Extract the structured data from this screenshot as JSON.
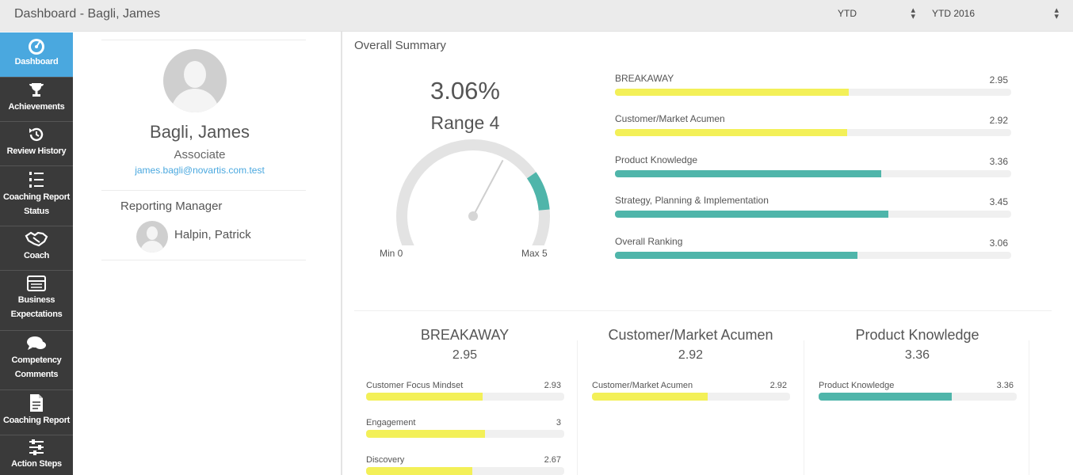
{
  "header": {
    "title": "Dashboard - Bagli, James",
    "period_select": "YTD",
    "year_select": "YTD 2016"
  },
  "sidebar": {
    "items": [
      {
        "label": "Dashboard",
        "icon": "dashboard-gauge-icon",
        "active": true
      },
      {
        "label": "Achievements",
        "icon": "trophy-icon"
      },
      {
        "label": "Review History",
        "icon": "history-icon"
      },
      {
        "label": "Coaching Report Status",
        "icon": "list-icon"
      },
      {
        "label": "Coach",
        "icon": "handshake-icon"
      },
      {
        "label": "Business Expectations",
        "icon": "table-icon"
      },
      {
        "label": "Competency Comments",
        "icon": "comments-icon"
      },
      {
        "label": "Coaching Report",
        "icon": "document-icon"
      },
      {
        "label": "Action Steps",
        "icon": "sliders-icon"
      }
    ]
  },
  "profile": {
    "name": "Bagli, James",
    "role": "Associate",
    "email": "james.bagli@novartis.com.test",
    "reporting_manager_label": "Reporting Manager",
    "manager_name": "Halpin, Patrick"
  },
  "summary": {
    "title": "Overall Summary",
    "percent": "3.06%",
    "range": "Range 4",
    "gauge_min": "Min 0",
    "gauge_max": "Max 5",
    "gauge_value": 3.06,
    "gauge_band": [
      3.6,
      4.2
    ],
    "metrics": [
      {
        "label": "BREAKAWAY",
        "value": "2.95",
        "fraction": 0.59,
        "color": "#f3f058"
      },
      {
        "label": "Customer/Market Acumen",
        "value": "2.92",
        "fraction": 0.585,
        "color": "#f3f058"
      },
      {
        "label": "Product Knowledge",
        "value": "3.36",
        "fraction": 0.672,
        "color": "#4fb5aa"
      },
      {
        "label": "Strategy, Planning & Implementation",
        "value": "3.45",
        "fraction": 0.69,
        "color": "#4fb5aa"
      },
      {
        "label": "Overall Ranking",
        "value": "3.06",
        "fraction": 0.612,
        "color": "#4fb5aa"
      }
    ]
  },
  "details": [
    {
      "title": "BREAKAWAY",
      "value": "2.95",
      "items": [
        {
          "label": "Customer Focus Mindset",
          "value": "2.93",
          "fraction": 0.586,
          "color": "#f3f058"
        },
        {
          "label": "Engagement",
          "value": "3",
          "fraction": 0.6,
          "color": "#f3f058"
        },
        {
          "label": "Discovery",
          "value": "2.67",
          "fraction": 0.534,
          "color": "#f3f058"
        }
      ]
    },
    {
      "title": "Customer/Market Acumen",
      "value": "2.92",
      "items": [
        {
          "label": "Customer/Market Acumen",
          "value": "2.92",
          "fraction": 0.584,
          "color": "#f3f058"
        }
      ]
    },
    {
      "title": "Product Knowledge",
      "value": "3.36",
      "items": [
        {
          "label": "Product Knowledge",
          "value": "3.36",
          "fraction": 0.672,
          "color": "#4fb5aa"
        }
      ]
    }
  ]
}
